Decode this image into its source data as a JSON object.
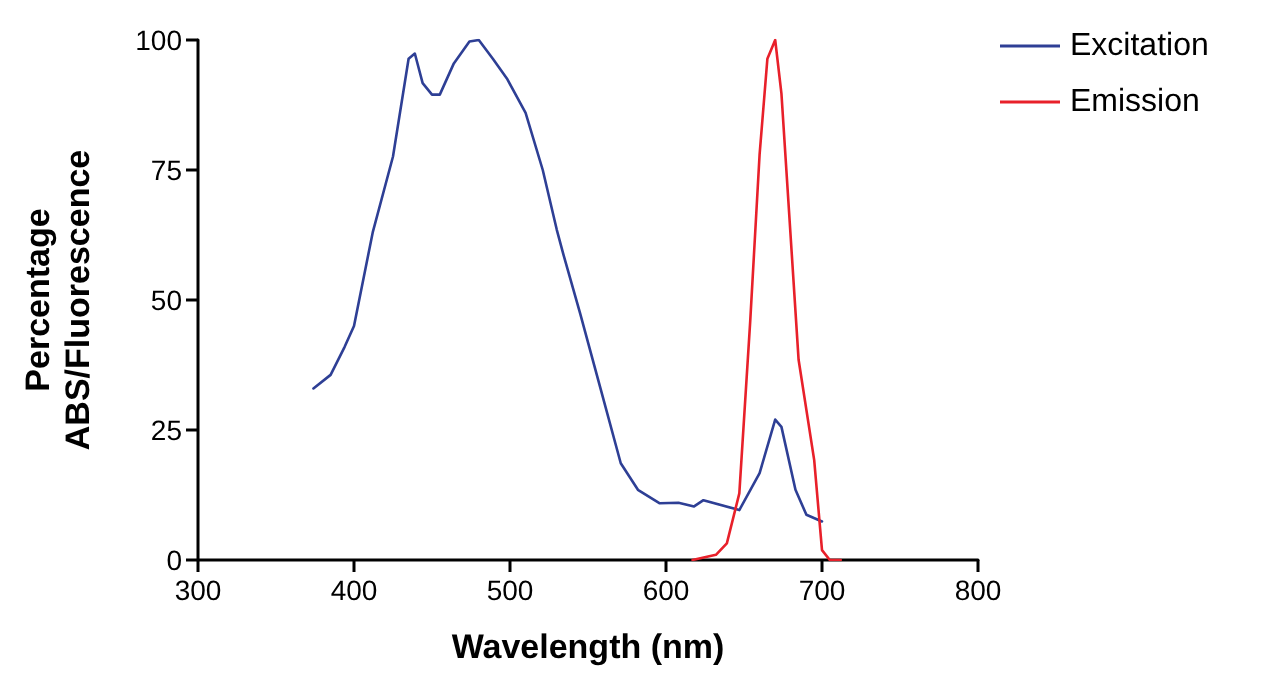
{
  "chart_data": {
    "type": "line",
    "xlabel": "Wavelength (nm)",
    "ylabel": "Percentage\nABS/Fluorescence",
    "xlim": [
      300,
      800
    ],
    "xticks": [
      300,
      400,
      500,
      600,
      700,
      800
    ],
    "ylim": [
      0,
      100
    ],
    "yticks": [
      0,
      25,
      50,
      75,
      100
    ],
    "grid": false,
    "legend": "top right",
    "marker": "none",
    "line_style": "solid",
    "series": [
      {
        "name": "Excitation",
        "color": "#2e3f95",
        "x": [
          374,
          385,
          394,
          400,
          412,
          425,
          435,
          439,
          444,
          450,
          455,
          464,
          474,
          480,
          489,
          498,
          510,
          521,
          530,
          534,
          545,
          558,
          571,
          582,
          596,
          608,
          618,
          624,
          647,
          660,
          670,
          674,
          683,
          690,
          700
        ],
        "values": [
          33,
          35.6,
          41,
          45,
          63,
          77.6,
          96.4,
          97.4,
          91.7,
          89.5,
          89.5,
          95.5,
          99.7,
          100,
          96.4,
          92.6,
          86,
          75,
          63.5,
          59,
          47.4,
          33,
          18.6,
          13.5,
          10.9,
          11,
          10.3,
          11.5,
          9.6,
          16.7,
          27,
          25.6,
          13.5,
          8.7,
          7.4
        ]
      },
      {
        "name": "Emission",
        "color": "#e8202a",
        "x": [
          617,
          632,
          639,
          647,
          654,
          660,
          665,
          670,
          674,
          685,
          695,
          700,
          705,
          712
        ],
        "values": [
          0,
          1,
          3.2,
          12.8,
          46,
          78,
          96.4,
          100,
          89.7,
          38.5,
          19.2,
          1.9,
          0,
          0
        ]
      }
    ]
  }
}
